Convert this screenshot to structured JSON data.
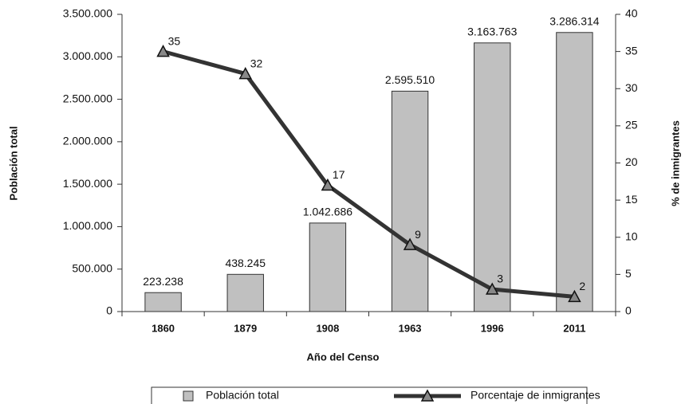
{
  "chart_data": {
    "type": "bar",
    "x_label": "Año del Censo",
    "y_label": "Población total",
    "y2_label": "% de inmigrantes",
    "categories": [
      "1860",
      "1879",
      "1908",
      "1963",
      "1996",
      "2011"
    ],
    "series": [
      {
        "name": "Población total",
        "type": "bar",
        "color": "#c0c0c0",
        "values": [
          223238,
          438245,
          1042686,
          2595510,
          3163763,
          3286314
        ],
        "value_labels": [
          "223.238",
          "438.245",
          "1.042.686",
          "2.595.510",
          "3.163.763",
          "3.286.314"
        ]
      },
      {
        "name": "Porcentaje de inmigrantes",
        "type": "line",
        "axis": "y2",
        "color": "#333333",
        "values": [
          35,
          32,
          17,
          9,
          3,
          2
        ]
      }
    ],
    "ylim": [
      0,
      3500000
    ],
    "yticks": [
      0,
      {
        "value": 500000,
        "label": "500.000"
      },
      {
        "value": 1000000,
        "label": "1.000.000"
      },
      {
        "value": 1500000,
        "label": "1.500.000"
      },
      {
        "value": 2000000,
        "label": "2.000.000"
      },
      {
        "value": 2500000,
        "label": "2.500.000"
      },
      {
        "value": 3000000,
        "label": "3.000.000"
      },
      {
        "value": 3500000,
        "label": "3.500.000"
      }
    ],
    "y2lim": [
      0,
      40
    ],
    "y2ticks": [
      0,
      5,
      10,
      15,
      20,
      25,
      30,
      35,
      40
    ],
    "grid": false,
    "legend": "bottom"
  }
}
